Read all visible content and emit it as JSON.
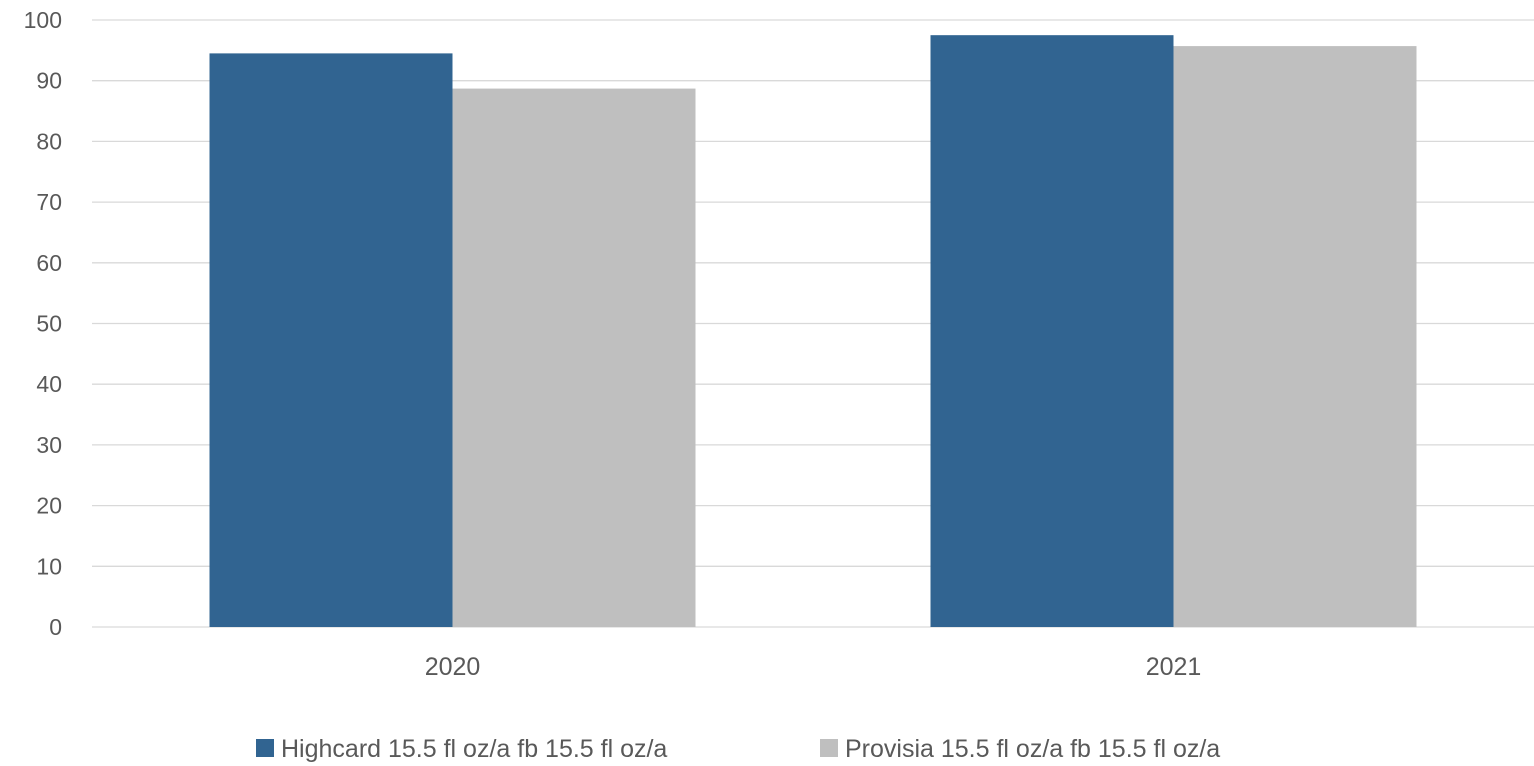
{
  "chart_data": {
    "type": "bar",
    "categories": [
      "2020",
      "2021"
    ],
    "series": [
      {
        "name": "Highcard 15.5 fl oz/a fb 15.5 fl oz/a",
        "color": "#316491",
        "values": [
          94.5,
          97.5
        ]
      },
      {
        "name": "Provisia 15.5 fl oz/a fb 15.5 fl oz/a",
        "color": "#bfbfbf",
        "values": [
          88.7,
          95.7
        ]
      }
    ],
    "yticks": [
      "0",
      "10",
      "20",
      "30",
      "40",
      "50",
      "60",
      "70",
      "80",
      "90",
      "100"
    ],
    "ylim": [
      0,
      100
    ],
    "grid": true,
    "legend_position": "bottom",
    "title": "",
    "xlabel": "",
    "ylabel": ""
  }
}
